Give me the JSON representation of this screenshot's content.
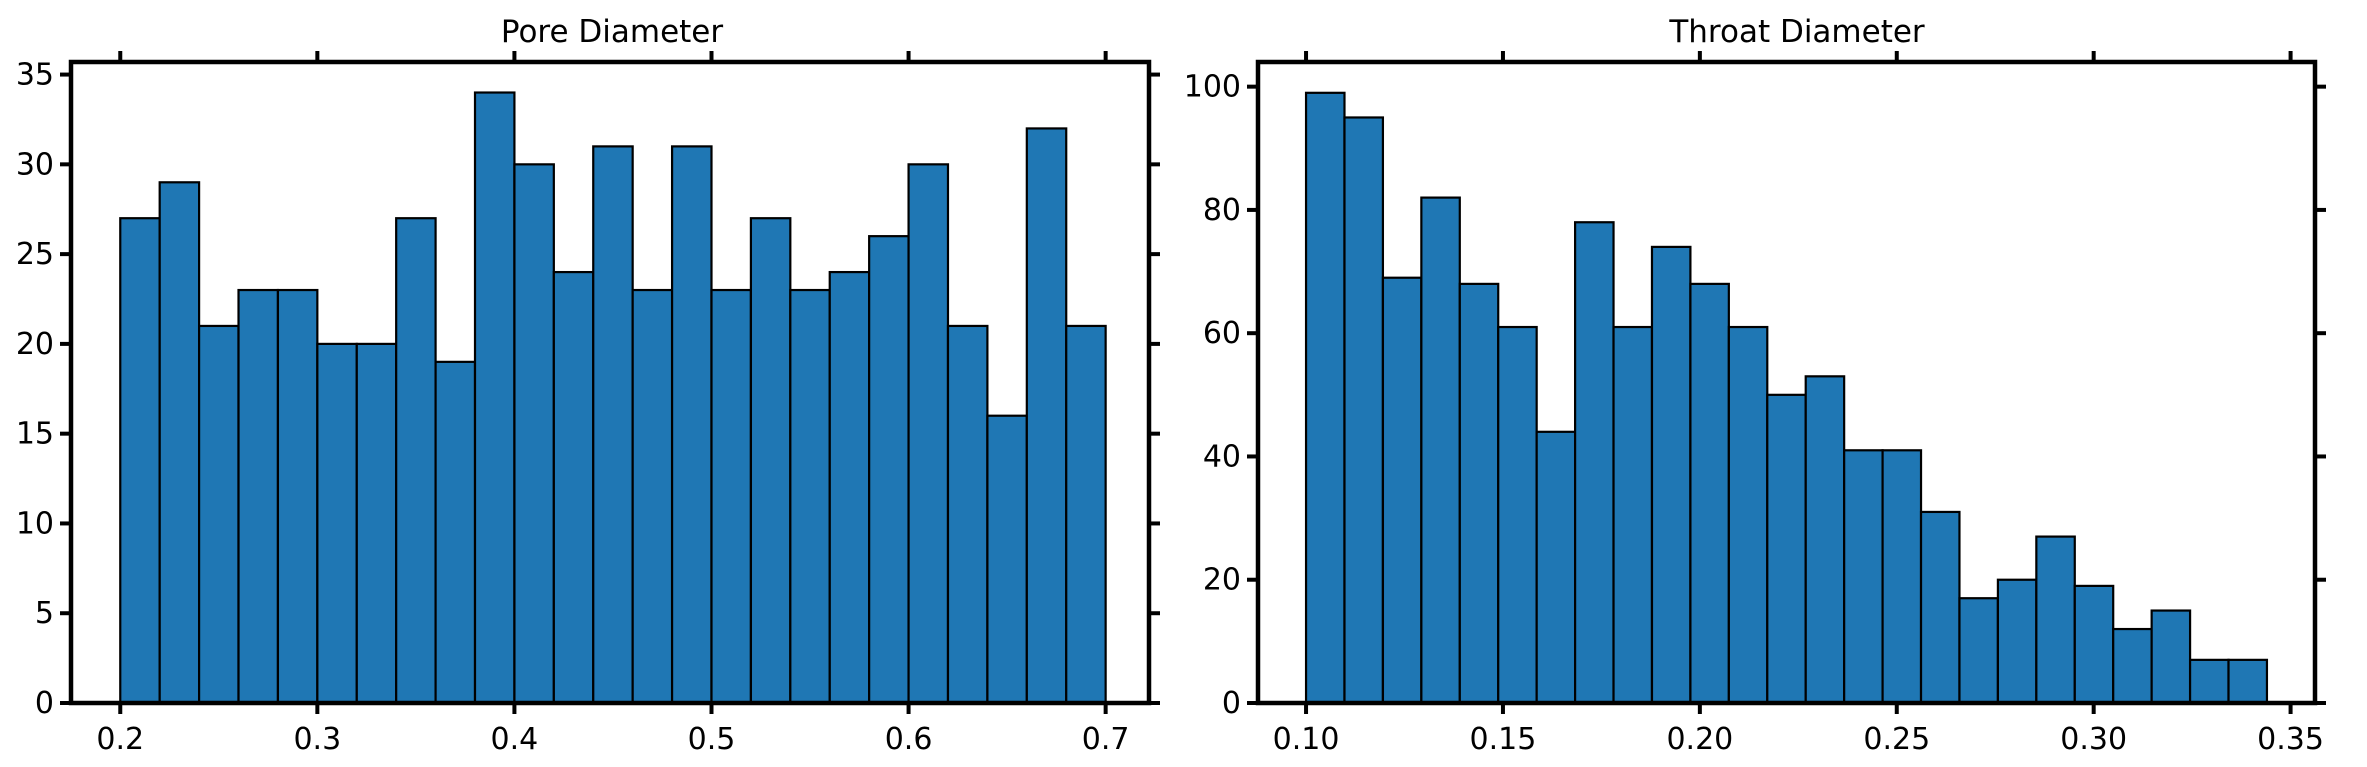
{
  "figure": {
    "background": "#ffffff",
    "bar_color": "#1f77b4",
    "edge_color": "#000000"
  },
  "chart_data": [
    {
      "type": "bar",
      "subtype": "histogram",
      "title": "Pore Diameter",
      "xlabel": "",
      "ylabel": "",
      "bin_start": 0.2,
      "bin_width": 0.02,
      "values": [
        27,
        29,
        21,
        23,
        23,
        20,
        20,
        27,
        19,
        34,
        30,
        24,
        31,
        23,
        31,
        23,
        27,
        23,
        24,
        26,
        30,
        21,
        16,
        32,
        21
      ],
      "xlim": [
        0.175,
        0.722
      ],
      "ylim": [
        0,
        35.7
      ],
      "xticks": [
        0.2,
        0.3,
        0.4,
        0.5,
        0.6,
        0.7
      ],
      "xtick_labels": [
        "0.2",
        "0.3",
        "0.4",
        "0.5",
        "0.6",
        "0.7"
      ],
      "yticks": [
        0,
        5,
        10,
        15,
        20,
        25,
        30,
        35
      ],
      "ytick_labels": [
        "0",
        "5",
        "10",
        "15",
        "20",
        "25",
        "30",
        "35"
      ],
      "grid": false,
      "legend": "none"
    },
    {
      "type": "bar",
      "subtype": "histogram",
      "title": "Throat Diameter",
      "xlabel": "",
      "ylabel": "",
      "bin_start": 0.1,
      "bin_width": 0.00976,
      "values": [
        99,
        95,
        69,
        82,
        68,
        61,
        44,
        78,
        61,
        74,
        68,
        61,
        50,
        53,
        41,
        41,
        31,
        17,
        20,
        27,
        19,
        12,
        15,
        7,
        7
      ],
      "xlim": [
        0.0878,
        0.3562
      ],
      "ylim": [
        0,
        104
      ],
      "xticks": [
        0.1,
        0.15,
        0.2,
        0.25,
        0.3,
        0.35
      ],
      "xtick_labels": [
        "0.10",
        "0.15",
        "0.20",
        "0.25",
        "0.30",
        "0.35"
      ],
      "yticks": [
        0,
        20,
        40,
        60,
        80,
        100
      ],
      "ytick_labels": [
        "0",
        "20",
        "40",
        "60",
        "80",
        "100"
      ],
      "grid": false,
      "legend": "none"
    }
  ]
}
